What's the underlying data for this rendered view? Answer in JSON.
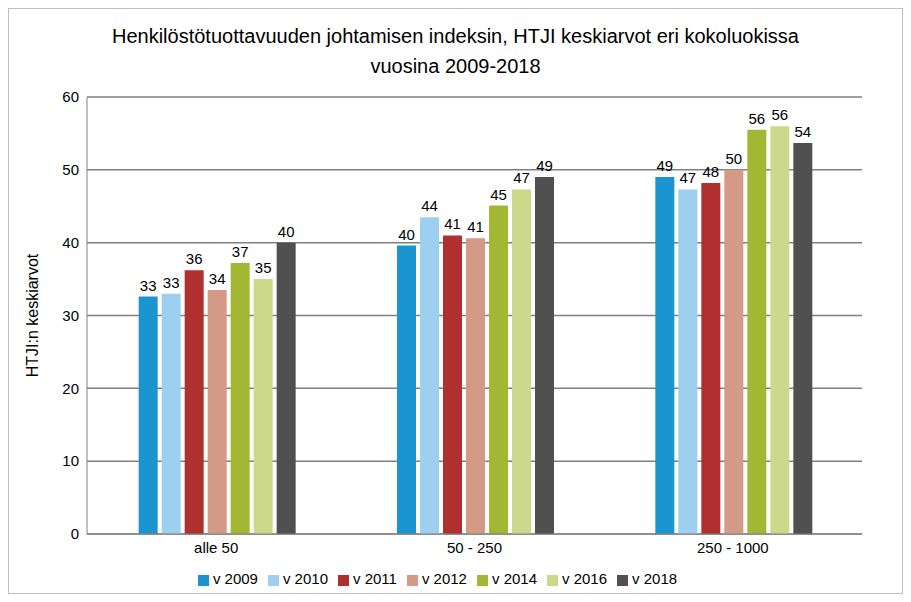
{
  "chart_data": {
    "type": "bar",
    "title": "Henkilöstötuottavuuden johtamisen indeksin, HTJI keskiarvot eri kokoluokissa vuosina 2009-2018",
    "y_label": "HTJI:n keskiarvot",
    "categories": [
      "alle 50",
      "50 - 250",
      "250 - 1000"
    ],
    "series": [
      {
        "name": "v 2009",
        "color": "#1a95d0",
        "values": [
          32.6,
          39.6,
          49.0
        ],
        "value_labels": [
          "33",
          "40",
          "49"
        ]
      },
      {
        "name": "v 2010",
        "color": "#9dcfef",
        "values": [
          33.0,
          43.5,
          47.3
        ],
        "value_labels": [
          "33",
          "44",
          "47"
        ]
      },
      {
        "name": "v 2011",
        "color": "#b03030",
        "values": [
          36.2,
          41.0,
          48.2
        ],
        "value_labels": [
          "36",
          "41",
          "48"
        ]
      },
      {
        "name": "v 2012",
        "color": "#d49a85",
        "values": [
          33.5,
          40.6,
          50.0
        ],
        "value_labels": [
          "34",
          "41",
          "50"
        ]
      },
      {
        "name": "v 2014",
        "color": "#a3b832",
        "values": [
          37.2,
          45.1,
          55.5
        ],
        "value_labels": [
          "37",
          "45",
          "56"
        ]
      },
      {
        "name": "v 2016",
        "color": "#cdd98a",
        "values": [
          35.0,
          47.3,
          56.0
        ],
        "value_labels": [
          "35",
          "47",
          "56"
        ]
      },
      {
        "name": "v 2018",
        "color": "#505050",
        "values": [
          40.0,
          49.0,
          53.7
        ],
        "value_labels": [
          "40",
          "49",
          "54"
        ]
      }
    ],
    "ylim": [
      0,
      60
    ],
    "yticks": [
      0,
      10,
      20,
      30,
      40,
      50,
      60
    ],
    "grid": true,
    "data_labels": true,
    "legend": "bottom"
  }
}
